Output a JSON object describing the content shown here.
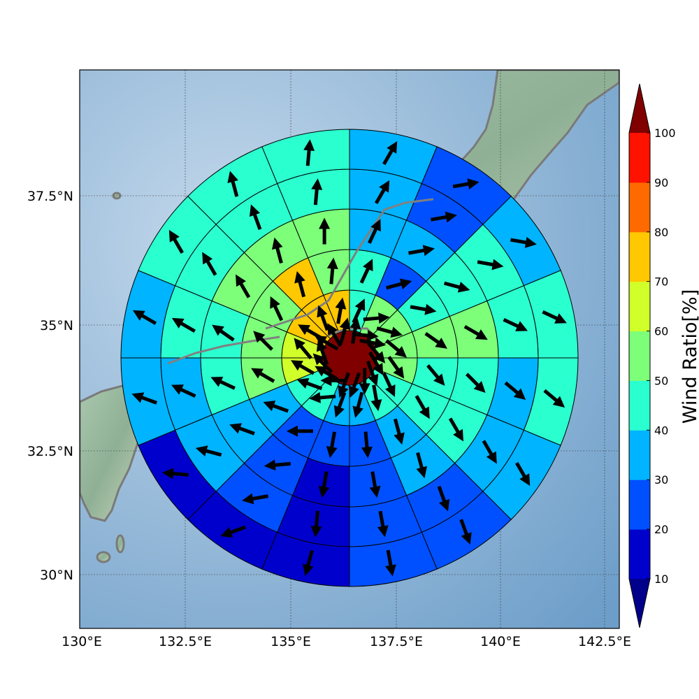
{
  "map": {
    "x_ticks": [
      "130°E",
      "132.5°E",
      "135°E",
      "137.5°E",
      "140°E",
      "142.5°E"
    ],
    "y_ticks": [
      "37.5°N",
      "35°N",
      "32.5°N",
      "30°N"
    ],
    "lon_range": [
      130,
      142.85
    ],
    "lat_range": [
      28.7,
      39.85
    ],
    "center_ratio": 100,
    "ring_count": 6,
    "sector_count": 16,
    "rings": [
      {
        "ratios": [
          70,
          55,
          45,
          45,
          55,
          45,
          40,
          35,
          35,
          40,
          45,
          65,
          65,
          75,
          85,
          85
        ],
        "arrows": [
          10,
          95,
          100,
          140,
          150,
          160,
          180,
          200,
          200,
          270,
          300,
          315,
          340,
          300,
          330,
          15
        ]
      },
      {
        "ratios": [
          45,
          55,
          55,
          55,
          50,
          45,
          45,
          35,
          35,
          40,
          45,
          65,
          65,
          75,
          75,
          75
        ],
        "arrows": [
          25,
          85,
          105,
          130,
          145,
          155,
          170,
          195,
          200,
          265,
          290,
          300,
          320,
          300,
          340,
          10
        ]
      },
      {
        "ratios": [
          45,
          25,
          45,
          55,
          45,
          40,
          35,
          25,
          20,
          25,
          35,
          55,
          55,
          50,
          75,
          55
        ],
        "arrows": [
          25,
          75,
          100,
          125,
          140,
          150,
          165,
          175,
          190,
          270,
          290,
          300,
          315,
          335,
          345,
          5
        ]
      },
      {
        "ratios": [
          35,
          35,
          45,
          55,
          40,
          45,
          35,
          25,
          15,
          20,
          35,
          40,
          40,
          50,
          55,
          50
        ],
        "arrows": [
          25,
          80,
          105,
          120,
          135,
          150,
          165,
          170,
          190,
          265,
          290,
          295,
          305,
          330,
          345,
          0
        ]
      },
      {
        "ratios": [
          35,
          25,
          40,
          45,
          35,
          35,
          20,
          20,
          15,
          20,
          30,
          35,
          40,
          45,
          45,
          45
        ],
        "arrows": [
          30,
          80,
          100,
          115,
          130,
          150,
          160,
          170,
          185,
          260,
          285,
          295,
          300,
          330,
          340,
          5
        ]
      },
      {
        "ratios": [
          35,
          20,
          35,
          45,
          40,
          35,
          25,
          20,
          10,
          10,
          15,
          30,
          30,
          40,
          40,
          45
        ],
        "arrows": [
          30,
          80,
          100,
          115,
          130,
          150,
          160,
          170,
          195,
          250,
          275,
          290,
          300,
          330,
          345,
          5
        ]
      }
    ]
  },
  "colorbar": {
    "title": "Wind Ratio[%]",
    "ticks": [
      "10",
      "20",
      "30",
      "40",
      "50",
      "60",
      "70",
      "80",
      "90",
      "100"
    ],
    "colors": [
      "#0000cd",
      "#0050ff",
      "#00b4ff",
      "#2affd0",
      "#7dff7a",
      "#d0ff2a",
      "#ffc800",
      "#ff6a00",
      "#ff1200"
    ],
    "under_color": "#00008b",
    "over_color": "#800000"
  }
}
